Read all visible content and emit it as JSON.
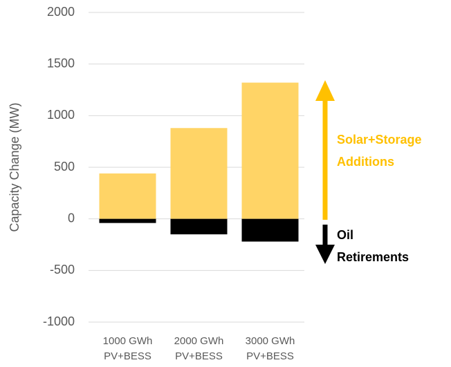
{
  "chart_data": {
    "type": "bar",
    "categories": [
      "1000 GWh PV+BESS",
      "2000 GWh PV+BESS",
      "3000 GWh PV+BESS"
    ],
    "series": [
      {
        "name": "Solar+Storage Additions",
        "color": "#FFD466",
        "label_color": "#FFC000",
        "values": [
          440,
          880,
          1320
        ]
      },
      {
        "name": "Oil Retirements",
        "color": "#000000",
        "label_color": "#000000",
        "values": [
          -40,
          -150,
          -220
        ]
      }
    ],
    "ylabel": "Capacity Change (MW)",
    "ylim": [
      -1000,
      2000
    ],
    "yticks": [
      -1000,
      -500,
      0,
      500,
      1000,
      1500,
      2000
    ],
    "grid": true
  }
}
